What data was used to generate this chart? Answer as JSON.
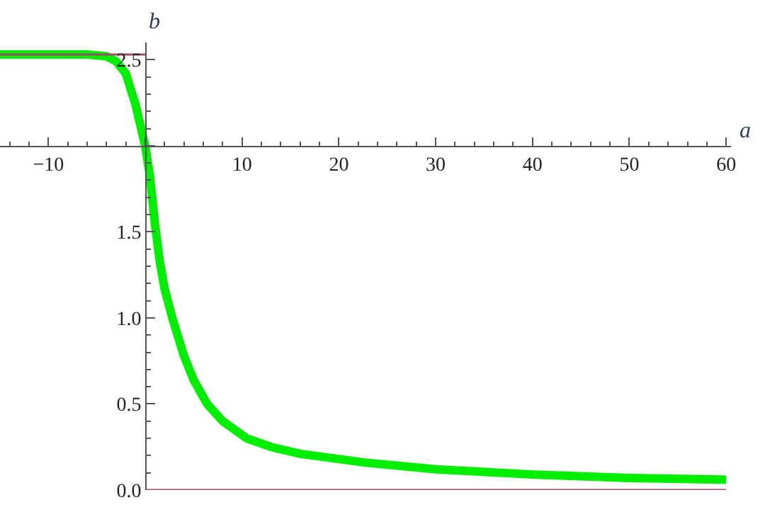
{
  "chart_data": {
    "type": "line",
    "xlabel": "a",
    "ylabel": "b",
    "xlim": [
      -15,
      60.5
    ],
    "ylim": [
      0,
      2.6
    ],
    "xticks": [
      -10,
      {
        "value": 0,
        "label": null
      },
      10,
      20,
      30,
      40,
      50,
      60
    ],
    "yticks": [
      {
        "value": 0,
        "label": "0.0"
      },
      {
        "value": 0.5,
        "label": "0.5"
      },
      {
        "value": 1,
        "label": "1.0"
      },
      {
        "value": 1.5,
        "label": "1.5"
      },
      {
        "value": 2,
        "label": null
      },
      {
        "value": 2.5,
        "label": "2.5"
      }
    ],
    "series": [
      {
        "color": "#00ee00",
        "x": [
          -15,
          -6,
          -4,
          -3,
          -2,
          -1,
          -0.5,
          0,
          0.5,
          1,
          1.5,
          2,
          2.8,
          4,
          5,
          6.4,
          8,
          10.5,
          13,
          16,
          22.6,
          30,
          40,
          50,
          60
        ],
        "values": [
          2.53,
          2.53,
          2.52,
          2.49,
          2.42,
          2.24,
          2.12,
          2.0,
          1.82,
          1.55,
          1.33,
          1.17,
          1.0,
          0.78,
          0.64,
          0.5,
          0.4,
          0.3,
          0.25,
          0.21,
          0.16,
          0.12,
          0.09,
          0.07,
          0.06
        ]
      },
      {
        "color": "#9b4d6e",
        "x": [
          -15,
          0
        ],
        "values": [
          2.53,
          2.53
        ]
      },
      {
        "color": "#9b4d6e",
        "x": [
          0,
          60
        ],
        "values": [
          0,
          0
        ]
      }
    ]
  }
}
